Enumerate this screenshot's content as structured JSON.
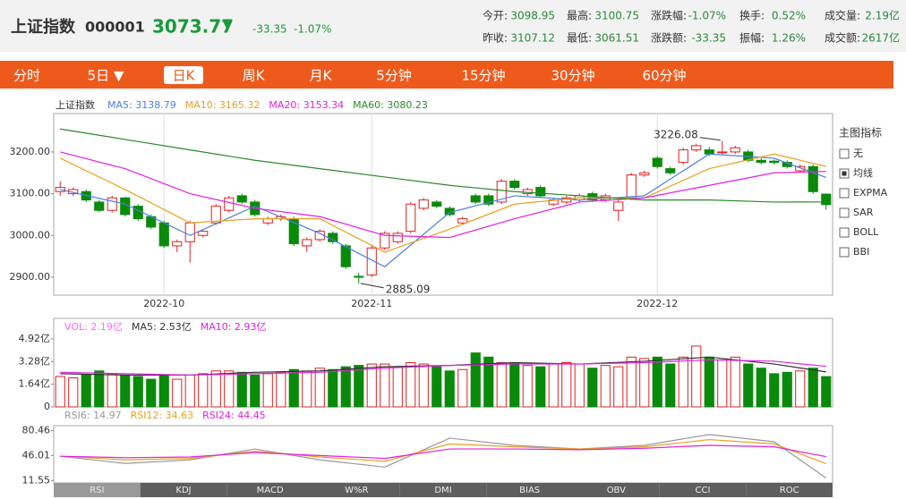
{
  "header": {
    "name": "上证指数",
    "code": "000001",
    "price": "3073.77",
    "arrow": "▼",
    "change": "-33.35",
    "pct": "-1.07%",
    "stats": [
      [
        {
          "label": "今开:",
          "value": "3098.95"
        },
        {
          "label": "最高:",
          "value": "3100.75"
        },
        {
          "label": "涨跌幅:",
          "value": "-1.07%"
        },
        {
          "label": "换手:",
          "value": "0.52%"
        },
        {
          "label": "成交量:",
          "value": "2.19亿"
        }
      ],
      [
        {
          "label": "昨收:",
          "value": "3107.12"
        },
        {
          "label": "最低:",
          "value": "3061.51"
        },
        {
          "label": "涨跌额:",
          "value": "-33.35"
        },
        {
          "label": "振幅:",
          "value": "1.26%"
        },
        {
          "label": "成交额:",
          "value": "2617亿"
        }
      ]
    ]
  },
  "tabs": {
    "items": [
      "分时",
      "5日 ▼",
      "日K",
      "周K",
      "月K",
      "5分钟",
      "15分钟",
      "30分钟",
      "60分钟"
    ],
    "active": 2
  },
  "indicator_panel": {
    "title": "主图指标",
    "options": [
      "无",
      "均线",
      "EXPMA",
      "SAR",
      "BOLL",
      "BBI"
    ],
    "checked": 1
  },
  "chart_data": [
    {
      "type": "candlestick",
      "title": "上证指数",
      "open": [
        3105,
        3100,
        3105,
        3080,
        3060,
        3090,
        3070,
        3045,
        3030,
        2975,
        2985,
        3000,
        3030,
        3060,
        3095,
        3080,
        3030,
        3040,
        3040,
        2975,
        2990,
        3005,
        2975,
        2902,
        2905,
        2970,
        2985,
        3010,
        3065,
        3080,
        3065,
        3030,
        3095,
        3095,
        3080,
        3130,
        3100,
        3115,
        3075,
        3080,
        3085,
        3100,
        3085,
        3060,
        3090,
        3145,
        3185,
        3160,
        3175,
        3205,
        3205,
        3198,
        3200,
        3200,
        3180,
        3178,
        3175,
        3155,
        3165,
        3098.95
      ],
      "high": [
        3130,
        3115,
        3110,
        3085,
        3095,
        3092,
        3075,
        3050,
        3035,
        2990,
        3035,
        3012,
        3075,
        3095,
        3100,
        3085,
        3045,
        3050,
        3045,
        2995,
        3015,
        3010,
        2980,
        2910,
        2975,
        3010,
        3010,
        3080,
        3090,
        3085,
        3070,
        3045,
        3100,
        3100,
        3135,
        3135,
        3115,
        3120,
        3090,
        3095,
        3100,
        3105,
        3100,
        3085,
        3150,
        3155,
        3190,
        3165,
        3210,
        3220,
        3212,
        3226.08,
        3215,
        3205,
        3185,
        3182,
        3180,
        3170,
        3170,
        3100.75
      ],
      "low": [
        3095,
        3095,
        3080,
        3055,
        3055,
        3045,
        3035,
        3015,
        2970,
        2960,
        2935,
        2995,
        3025,
        3055,
        3075,
        3045,
        3025,
        3035,
        2975,
        2960,
        2985,
        2980,
        2920,
        2885.09,
        2900,
        2965,
        2980,
        3005,
        3060,
        3065,
        3045,
        3025,
        3075,
        3070,
        3075,
        3110,
        3095,
        3090,
        3070,
        3075,
        3080,
        3080,
        3080,
        3035,
        3085,
        3140,
        3160,
        3145,
        3170,
        3200,
        3190,
        3195,
        3195,
        3175,
        3170,
        3170,
        3160,
        3150,
        3100,
        3061.51
      ],
      "close": [
        3115,
        3110,
        3085,
        3060,
        3090,
        3050,
        3040,
        3020,
        2975,
        2985,
        3030,
        3010,
        3070,
        3090,
        3080,
        3050,
        3040,
        3045,
        2980,
        2990,
        3010,
        2985,
        2925,
        2900,
        2970,
        3005,
        3005,
        3075,
        3085,
        3070,
        3050,
        3040,
        3080,
        3075,
        3130,
        3115,
        3110,
        3095,
        3085,
        3090,
        3095,
        3085,
        3095,
        3080,
        3145,
        3150,
        3165,
        3150,
        3205,
        3215,
        3195,
        3200,
        3210,
        3180,
        3175,
        3175,
        3165,
        3165,
        3105,
        3073.77
      ],
      "ma_x": [
        0,
        5,
        10,
        15,
        20,
        25,
        30,
        35,
        40,
        45,
        50,
        55,
        59
      ],
      "series": [
        {
          "name": "MA5: 3138.79",
          "color": "#4a7fe0",
          "values": [
            3110,
            3075,
            3000,
            3070,
            3005,
            2925,
            3055,
            3095,
            3085,
            3095,
            3195,
            3185,
            3138.79
          ]
        },
        {
          "name": "MA10: 3165.32",
          "color": "#e8a020",
          "values": [
            3185,
            3110,
            3030,
            3040,
            3040,
            2960,
            3015,
            3075,
            3090,
            3090,
            3160,
            3195,
            3165.32
          ]
        },
        {
          "name": "MA20: 3153.34",
          "color": "#e020e0",
          "values": [
            3200,
            3160,
            3100,
            3065,
            3045,
            3000,
            2995,
            3040,
            3080,
            3090,
            3120,
            3150,
            3153.34
          ]
        },
        {
          "name": "MA60: 3080.23",
          "color": "#2a8a2a",
          "values": [
            3255,
            3230,
            3205,
            3180,
            3160,
            3140,
            3120,
            3105,
            3095,
            3085,
            3085,
            3080,
            3080.23
          ]
        }
      ],
      "ylim": [
        2857,
        3292
      ],
      "yticks": [
        {
          "value": 3200,
          "label": "3200.00"
        },
        {
          "value": 3100,
          "label": "3100.00"
        },
        {
          "value": 3000,
          "label": "3000.00"
        },
        {
          "value": 2900,
          "label": "2900.00"
        }
      ],
      "xlim": [
        -0.5,
        59.5
      ],
      "xticks": [
        {
          "value": 8,
          "label": "2022-10"
        },
        {
          "value": 24,
          "label": "2022-11"
        },
        {
          "value": 46,
          "label": "2022-12"
        }
      ],
      "up_color": "#e02020",
      "down_color": "#0a8a0a"
    },
    {
      "type": "bar",
      "title": "VOL: 2.19亿",
      "color": "#ff66ff",
      "values": [
        2.2,
        2.1,
        2.3,
        2.6,
        2.4,
        2.3,
        2.2,
        2.0,
        2.3,
        2.0,
        2.3,
        2.4,
        2.6,
        2.6,
        2.5,
        2.3,
        2.4,
        2.5,
        2.7,
        2.6,
        2.8,
        2.7,
        2.9,
        3.0,
        3.1,
        3.1,
        2.9,
        3.2,
        3.1,
        2.9,
        2.6,
        2.7,
        3.9,
        3.6,
        3.2,
        3.2,
        3.0,
        2.9,
        3.1,
        3.2,
        3.1,
        2.8,
        3.0,
        2.9,
        3.6,
        3.5,
        3.6,
        3.1,
        3.6,
        4.4,
        3.6,
        3.4,
        3.6,
        3.1,
        2.8,
        2.4,
        2.5,
        2.6,
        2.8,
        2.19
      ],
      "ma_x": [
        0,
        5,
        10,
        15,
        20,
        25,
        30,
        35,
        40,
        45,
        50,
        55,
        59
      ],
      "series": [
        {
          "name": "MA5: 2.53亿",
          "color": "#333333",
          "values": [
            2.4,
            2.3,
            2.3,
            2.5,
            2.6,
            2.9,
            3.0,
            3.2,
            3.1,
            3.3,
            3.6,
            3.1,
            2.53
          ]
        },
        {
          "name": "MA10: 2.93亿",
          "color": "#e020e0",
          "values": [
            2.5,
            2.4,
            2.3,
            2.4,
            2.5,
            2.8,
            3.0,
            3.1,
            3.1,
            3.2,
            3.4,
            3.3,
            2.93
          ]
        }
      ],
      "ylim": [
        0,
        6.4
      ],
      "yticks": [
        {
          "value": 4.92,
          "label": "4.92亿"
        },
        {
          "value": 3.28,
          "label": "3.28亿"
        },
        {
          "value": 1.64,
          "label": "1.64亿"
        },
        0
      ]
    },
    {
      "type": "line",
      "x": [
        0,
        5,
        10,
        15,
        20,
        25,
        30,
        35,
        40,
        45,
        50,
        55,
        59
      ],
      "series": [
        {
          "name": "RSI6: 14.97",
          "color": "#999999",
          "values": [
            45,
            35,
            40,
            55,
            40,
            30,
            70,
            60,
            55,
            60,
            75,
            65,
            14.97
          ]
        },
        {
          "name": "RSI12: 34.63",
          "color": "#e8a020",
          "values": [
            45,
            40,
            42,
            52,
            44,
            38,
            62,
            58,
            55,
            58,
            68,
            62,
            34.63
          ]
        },
        {
          "name": "RSI24: 44.45",
          "color": "#e020e0",
          "values": [
            45,
            43,
            44,
            50,
            46,
            42,
            55,
            55,
            54,
            56,
            60,
            58,
            44.45
          ]
        }
      ],
      "ylim": [
        8.16,
        87.2
      ],
      "yticks": [
        80.46,
        46.01,
        11.55
      ]
    }
  ],
  "bottom_tabs": {
    "items": [
      "RSI",
      "KDJ",
      "MACD",
      "W%R",
      "DMI",
      "BIAS",
      "OBV",
      "CCI",
      "ROC"
    ],
    "active": 0
  }
}
